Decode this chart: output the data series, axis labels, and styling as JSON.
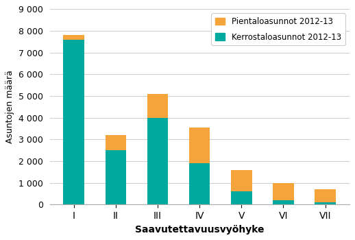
{
  "categories": [
    "I",
    "II",
    "III",
    "IV",
    "V",
    "VI",
    "VII"
  ],
  "kerrostalo": [
    7600,
    2500,
    4000,
    1900,
    600,
    200,
    100
  ],
  "pientalo": [
    200,
    700,
    1100,
    1650,
    1000,
    800,
    600
  ],
  "kerrostalo_color": "#00A99D",
  "pientalo_color": "#F4A43B",
  "ylabel": "Asuntojen määrä",
  "xlabel": "Saavutettavuusvyöhyke",
  "ylim": [
    0,
    9000
  ],
  "yticks": [
    0,
    1000,
    2000,
    3000,
    4000,
    5000,
    6000,
    7000,
    8000,
    9000
  ],
  "ytick_labels": [
    "0",
    "1 000",
    "2 000",
    "3 000",
    "4 000",
    "5 000",
    "6 000",
    "7 000",
    "8 000",
    "9 000"
  ],
  "legend_pientalo": "Pientaloasunnot 2012-13",
  "legend_kerrostalo": "Kerrostaloasunnot 2012-13",
  "background_color": "#ffffff",
  "grid_color": "#d0d0d0",
  "bar_width": 0.5,
  "figsize": [
    5.18,
    3.5
  ],
  "dpi": 100
}
